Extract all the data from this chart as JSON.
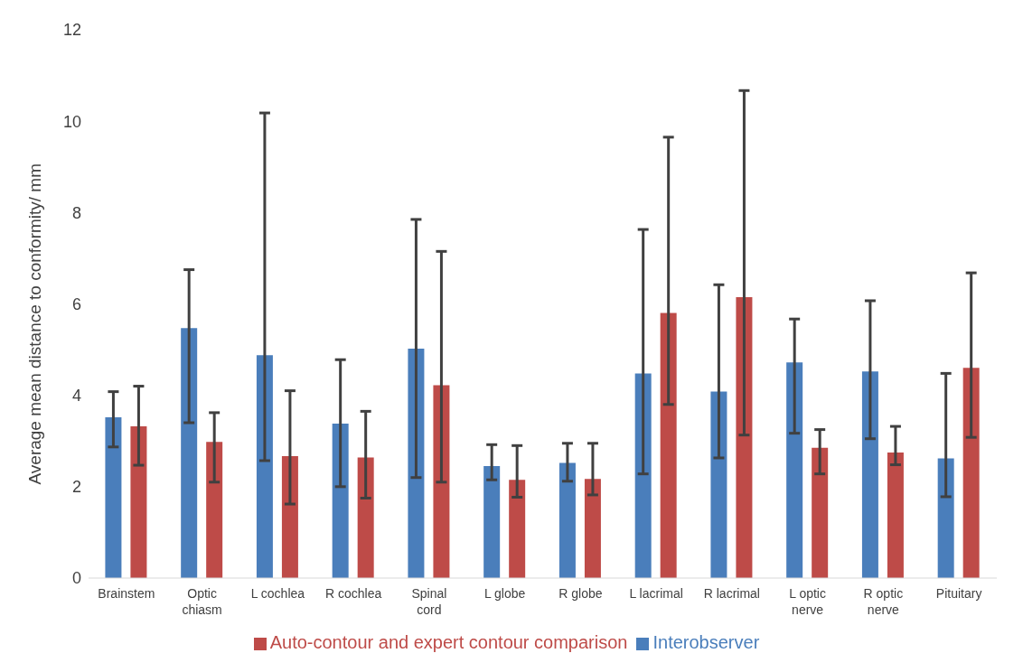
{
  "chart_data": {
    "type": "bar",
    "ylabel": "Average mean distance to conformity/ mm",
    "categories": [
      "Brainstem",
      "Optic chiasm",
      "L cochlea",
      "R cochlea",
      "Spinal cord",
      "L globe",
      "R globe",
      "L lacrimal",
      "R lacrimal",
      "L optic nerve",
      "R optic nerve",
      "Pituitary"
    ],
    "series": [
      {
        "name": "Interobserver",
        "color": "#4a7ebb",
        "values": [
          3.52,
          5.47,
          4.88,
          3.38,
          5.02,
          2.45,
          2.52,
          4.48,
          4.08,
          4.72,
          4.52,
          2.62
        ],
        "errors": [
          [
            2.87,
            4.08
          ],
          [
            3.4,
            6.75
          ],
          [
            2.57,
            10.18
          ],
          [
            2.0,
            4.78
          ],
          [
            2.2,
            7.85
          ],
          [
            2.15,
            2.92
          ],
          [
            2.12,
            2.95
          ],
          [
            2.28,
            7.63
          ],
          [
            2.63,
            6.42
          ],
          [
            3.17,
            5.67
          ],
          [
            3.05,
            6.07
          ],
          [
            1.78,
            4.48
          ]
        ]
      },
      {
        "name": "Auto-contour and expert contour comparison",
        "color": "#be4b48",
        "values": [
          3.32,
          2.98,
          2.67,
          2.64,
          4.22,
          2.15,
          2.17,
          5.8,
          6.15,
          2.85,
          2.75,
          4.6
        ],
        "errors": [
          [
            2.47,
            4.2
          ],
          [
            2.1,
            3.62
          ],
          [
            1.62,
            4.1
          ],
          [
            1.75,
            3.65
          ],
          [
            2.1,
            7.15
          ],
          [
            1.77,
            2.9
          ],
          [
            1.82,
            2.95
          ],
          [
            3.8,
            9.65
          ],
          [
            3.13,
            10.67
          ],
          [
            2.28,
            3.25
          ],
          [
            2.48,
            3.32
          ],
          [
            3.08,
            6.68
          ]
        ]
      }
    ],
    "ylim": [
      0,
      12
    ],
    "yticks": [
      0,
      2,
      4,
      6,
      8,
      10,
      12
    ],
    "grid": false,
    "legend": "bottom"
  }
}
